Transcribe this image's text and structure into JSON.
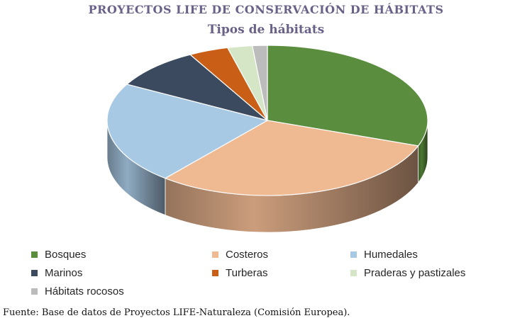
{
  "chart_title": "PROYECTOS LIFE DE CONSERVACIÓN DE HÁBITATS",
  "chart_subtitle": "Tipos de hábitats",
  "source": "Fuente: Base de datos de Proyectos LIFE-Naturaleza (Comisión Europea).",
  "chart_data": {
    "type": "pie",
    "style": "3d",
    "title": "PROYECTOS LIFE DE CONSERVACIÓN DE HÁBITATS",
    "subtitle": "Tipos de hábitats",
    "legend_position": "bottom",
    "categories": [
      "Bosques",
      "Costeros",
      "Humedales",
      "Marinos",
      "Turberas",
      "Praderas y pastizales",
      "Hábitats rocosos"
    ],
    "values": [
      30.5,
      30.5,
      22.0,
      9.0,
      4.0,
      2.5,
      1.5
    ],
    "colors": [
      "#5b8d3e",
      "#efb992",
      "#a8c9e4",
      "#3b4a5e",
      "#c95f16",
      "#d4e6c6",
      "#bcbcbc"
    ]
  }
}
